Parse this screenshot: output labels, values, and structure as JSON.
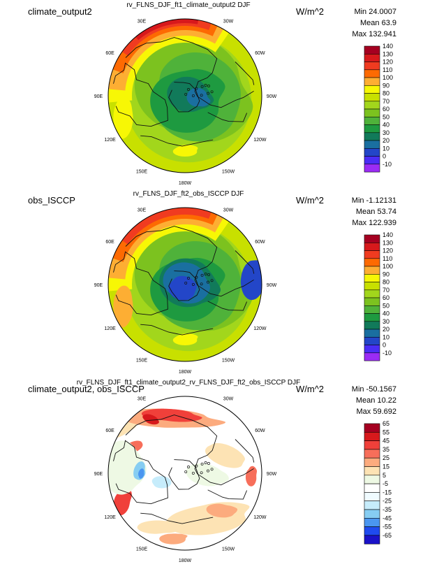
{
  "units": "W/m^2",
  "panels": [
    {
      "id": "p1",
      "title": "climate_output2",
      "subtitle": "rv_FLNS_DJF_ft1_climate_output2  DJF",
      "stats": [
        "Min 24.0007",
        "Mean 63.9",
        "Max 132.941"
      ],
      "lon_labels": [
        "30E",
        "30W",
        "60E",
        "60W",
        "90E",
        "90W",
        "120E",
        "120W",
        "150E",
        "150W",
        "180W"
      ]
    },
    {
      "id": "p2",
      "title": "obs_ISCCP",
      "subtitle": "rv_FLNS_DJF_ft2_obs_ISCCP  DJF",
      "stats": [
        "Min -1.12131",
        "Mean 53.74",
        "Max 122.939"
      ],
      "lon_labels": [
        "30E",
        "30W",
        "60E",
        "60W",
        "90E",
        "90W",
        "120E",
        "120W",
        "150E",
        "150W",
        "180W"
      ]
    },
    {
      "id": "p3",
      "title": "climate_output2, obs_ISCCP",
      "subtitle": "rv_FLNS_DJF_ft1_climate_output2_rv_FLNS_DJF_ft2_obs_ISCCP  DJF",
      "stats": [
        "Min -50.1567",
        "Mean 10.22",
        "Max 59.692"
      ],
      "lon_labels": [
        "30E",
        "30W",
        "60E",
        "60W",
        "90E",
        "90W",
        "120E",
        "120W",
        "150E",
        "150W",
        "180W"
      ]
    }
  ],
  "chart_data": [
    {
      "type": "heatmap",
      "projection": "polar-stereographic",
      "title": "rv_FLNS_DJF_ft1_climate_output2  DJF",
      "panel_label": "climate_output2",
      "units": "W/m^2",
      "stats": {
        "min": 24.0007,
        "mean": 63.9,
        "max": 132.941
      },
      "colorbar": {
        "levels": [
          140,
          130,
          120,
          110,
          100,
          90,
          80,
          70,
          60,
          50,
          40,
          30,
          20,
          10,
          0,
          -10
        ],
        "colors": [
          "#a50021",
          "#d7191c",
          "#f03b20",
          "#fd6a02",
          "#fdae33",
          "#f7f705",
          "#c8e000",
          "#a2d61c",
          "#7cc21f",
          "#4fb23a",
          "#1e9a40",
          "#117a5a",
          "#1a6fa0",
          "#2346c8",
          "#4a2df5",
          "#9b2cf5"
        ]
      }
    },
    {
      "type": "heatmap",
      "projection": "polar-stereographic",
      "title": "rv_FLNS_DJF_ft2_obs_ISCCP  DJF",
      "panel_label": "obs_ISCCP",
      "units": "W/m^2",
      "stats": {
        "min": -1.12131,
        "mean": 53.74,
        "max": 122.939
      },
      "colorbar": {
        "levels": [
          140,
          130,
          120,
          110,
          100,
          90,
          80,
          70,
          60,
          50,
          40,
          30,
          20,
          10,
          0,
          -10
        ],
        "colors": [
          "#a50021",
          "#d7191c",
          "#f03b20",
          "#fd6a02",
          "#fdae33",
          "#f7f705",
          "#c8e000",
          "#a2d61c",
          "#7cc21f",
          "#4fb23a",
          "#1e9a40",
          "#117a5a",
          "#1a6fa0",
          "#2346c8",
          "#4a2df5",
          "#9b2cf5"
        ]
      }
    },
    {
      "type": "heatmap",
      "projection": "polar-stereographic",
      "title": "rv_FLNS_DJF_ft1_climate_output2_rv_FLNS_DJF_ft2_obs_ISCCP  DJF",
      "panel_label": "climate_output2, obs_ISCCP",
      "units": "W/m^2",
      "stats": {
        "min": -50.1567,
        "mean": 10.22,
        "max": 59.692
      },
      "colorbar": {
        "levels": [
          65,
          55,
          45,
          35,
          25,
          15,
          5,
          -5,
          -15,
          -25,
          -35,
          -45,
          -55,
          -65
        ],
        "colors": [
          "#a50021",
          "#d7191c",
          "#f0403a",
          "#f76e5a",
          "#fcab7e",
          "#fde3b4",
          "#eef9e4",
          "#ffffff",
          "#f0fbff",
          "#c6ecfb",
          "#86cdf2",
          "#4a96f0",
          "#1f4bef",
          "#1a12c8"
        ]
      }
    }
  ]
}
